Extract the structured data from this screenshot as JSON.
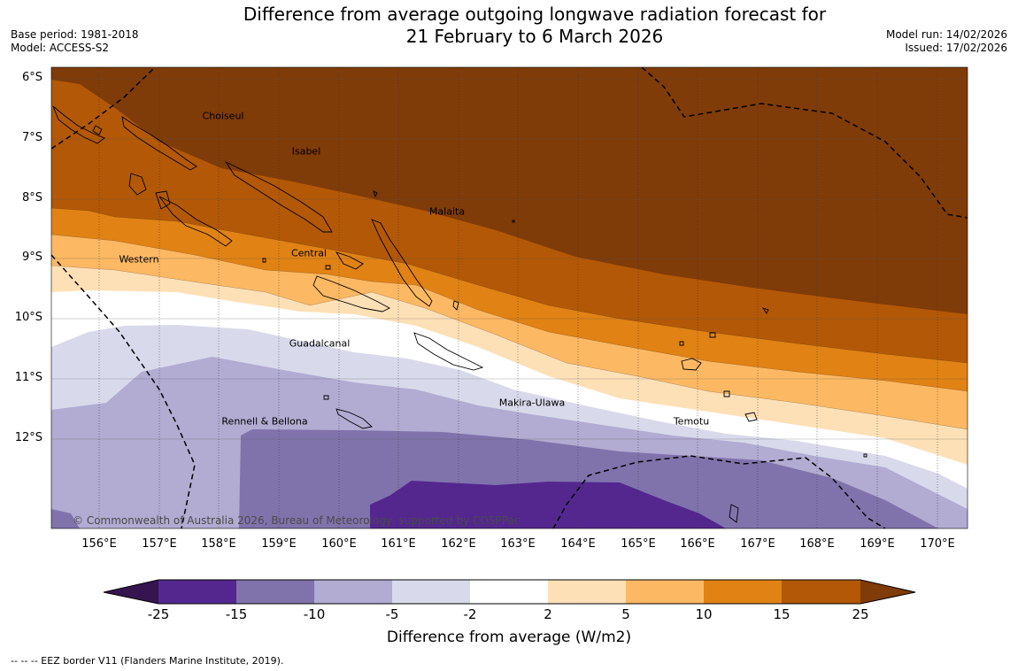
{
  "title": {
    "line1": "Difference from average outgoing longwave radiation forecast for",
    "line2": "21 February to 6 March 2026"
  },
  "meta": {
    "base_period": "Base period: 1981-2018",
    "model": "Model: ACCESS-S2",
    "model_run": "Model run: 14/02/2026",
    "issued": "Issued: 17/02/2026"
  },
  "latitudes": [
    "6°S",
    "7°S",
    "8°S",
    "9°S",
    "10°S",
    "11°S",
    "12°S"
  ],
  "longitudes": [
    "156°E",
    "157°E",
    "158°E",
    "159°E",
    "160°E",
    "161°E",
    "162°E",
    "163°E",
    "164°E",
    "165°E",
    "166°E",
    "167°E",
    "168°E",
    "169°E",
    "170°E"
  ],
  "regions": [
    "Choiseul",
    "Isabel",
    "Malaita",
    "Western",
    "Central",
    "Guadalcanal",
    "Makira-Ulawa",
    "Rennell & Bellona",
    "Temotu"
  ],
  "copyright": "© Commonwealth of Australia 2026, Bureau of Meteorology, supported by COSPPac",
  "colorbar": {
    "title": "Difference from average (W/m2)",
    "tick_labels": [
      "-25",
      "-15",
      "-10",
      "-5",
      "-2",
      "2",
      "5",
      "10",
      "15",
      "25"
    ],
    "bin_colors": [
      "#36154f",
      "#54278f",
      "#8073ac",
      "#b2abd2",
      "#d8daeb",
      "#ffffff",
      "#fee0b6",
      "#fdb863",
      "#e08214",
      "#b35806",
      "#7f3b08"
    ]
  },
  "footer": "--  --  -- EEZ border V11 (Flanders Marine Institute, 2019)."
}
